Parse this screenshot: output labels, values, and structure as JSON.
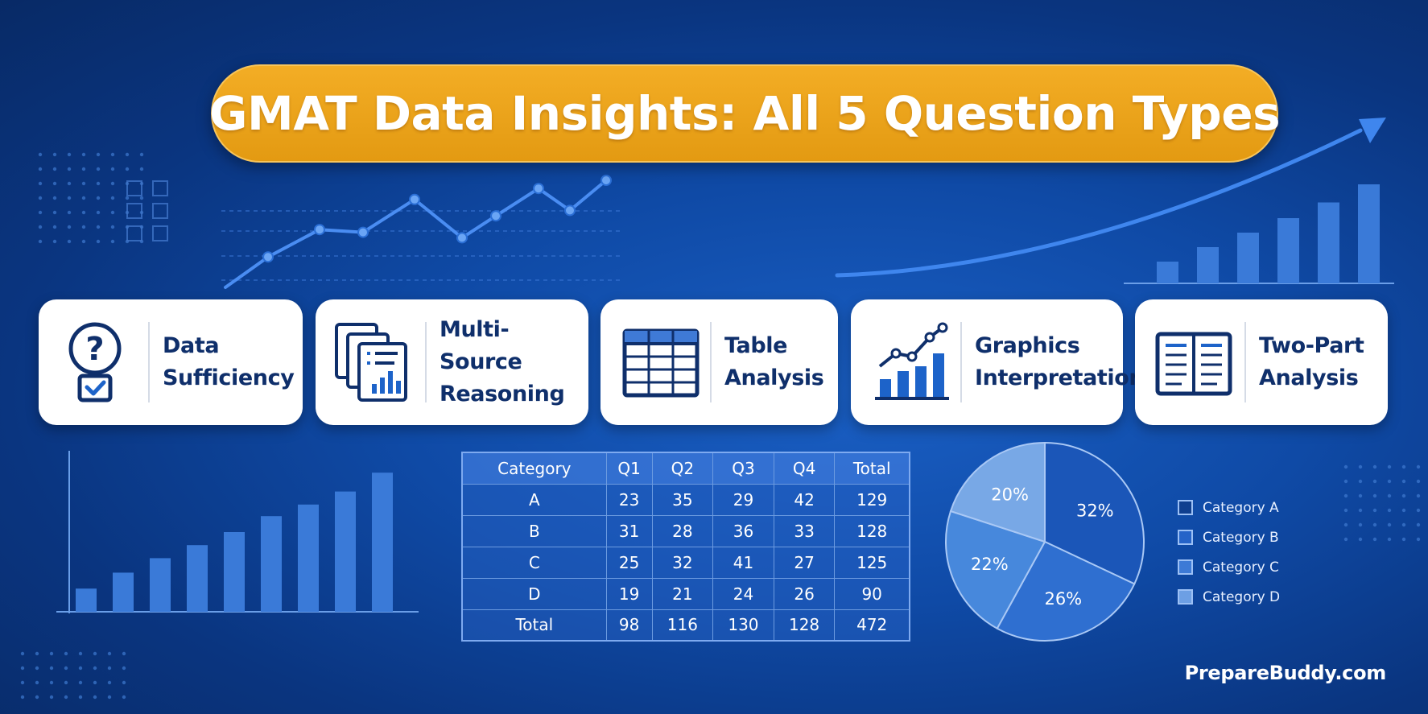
{
  "title": "GMAT Data Insights: All 5 Question Types",
  "cards": [
    {
      "label": "Data\nSufficiency",
      "icon": "question-check-icon"
    },
    {
      "label": "Multi-Source\nReasoning",
      "icon": "stacked-documents-icon"
    },
    {
      "label": "Table\nAnalysis",
      "icon": "table-grid-icon"
    },
    {
      "label": "Graphics\nInterpretation",
      "icon": "line-bar-chart-icon"
    },
    {
      "label": "Two-Part\nAnalysis",
      "icon": "open-book-icon"
    }
  ],
  "table": {
    "headers": [
      "Category",
      "Q1",
      "Q2",
      "Q3",
      "Q4",
      "Total"
    ],
    "rows": [
      [
        "A",
        "23",
        "35",
        "29",
        "42",
        "129"
      ],
      [
        "B",
        "31",
        "28",
        "36",
        "33",
        "128"
      ],
      [
        "C",
        "25",
        "32",
        "41",
        "27",
        "125"
      ],
      [
        "D",
        "19",
        "21",
        "24",
        "26",
        "90"
      ],
      [
        "Total",
        "98",
        "116",
        "130",
        "128",
        "472"
      ]
    ]
  },
  "chart_data": [
    {
      "type": "pie",
      "labels": [
        "32%",
        "26%",
        "22%",
        "20%"
      ],
      "values": [
        32,
        26,
        22,
        20
      ],
      "colors": [
        "#1b56b8",
        "#2f6fd0",
        "#4788dc",
        "#78a8e6"
      ]
    },
    {
      "type": "bar",
      "values": [
        16,
        27,
        37,
        46,
        55,
        66,
        74,
        83,
        96
      ]
    },
    {
      "type": "bar",
      "values": [
        18,
        30,
        42,
        54,
        67,
        82
      ]
    },
    {
      "type": "line",
      "values": [
        12,
        22,
        21,
        33,
        19,
        27,
        37,
        29,
        40
      ]
    }
  ],
  "legend": [
    {
      "label": "Category A",
      "color": "#0f3f8f"
    },
    {
      "label": "Category B",
      "color": "#2563c8"
    },
    {
      "label": "Category C",
      "color": "#3d7ad6"
    },
    {
      "label": "Category D",
      "color": "#6d9fe4"
    }
  ],
  "brand": "PrepareBuddy.com",
  "colors": {
    "accent": "#f0a81f",
    "navy": "#0f2f6b",
    "bar": "#3a7ad8"
  }
}
